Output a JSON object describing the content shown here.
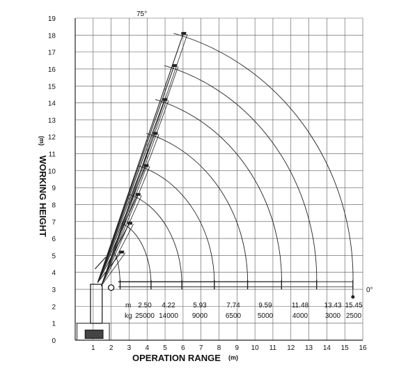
{
  "chart_data": {
    "type": "diagram",
    "xlabel": "OPERATION RANGE",
    "xunit": "(m)",
    "ylabel": "WORKING HEIGHT",
    "yunit": "(m)",
    "xlim": [
      0,
      16
    ],
    "ylim": [
      0,
      19
    ],
    "x_ticks": [
      "1",
      "2",
      "3",
      "4",
      "5",
      "6",
      "7",
      "8",
      "9",
      "10",
      "11",
      "12",
      "13",
      "14",
      "15",
      "16"
    ],
    "y_ticks": [
      "0",
      "1",
      "2",
      "3",
      "4",
      "5",
      "6",
      "7",
      "8",
      "9",
      "10",
      "11",
      "12",
      "13",
      "14",
      "15",
      "16",
      "17",
      "18",
      "19"
    ],
    "angle_top_label": "75°",
    "angle_bottom_label": "0°",
    "reach_row_label": "m",
    "load_row_label": "kg",
    "reach_values": [
      "2.50",
      "4.22",
      "5.93",
      "7.74",
      "9.59",
      "11.48",
      "13.43",
      "15.45"
    ],
    "load_values": [
      "25000",
      "14000",
      "9000",
      "6500",
      "5000",
      "4000",
      "3000",
      "2500"
    ],
    "pivot": [
      2.0,
      3.1
    ],
    "boom_tip_heights": [
      5.2,
      6.9,
      8.6,
      10.3,
      12.2,
      14.2,
      16.2,
      18.1
    ]
  }
}
